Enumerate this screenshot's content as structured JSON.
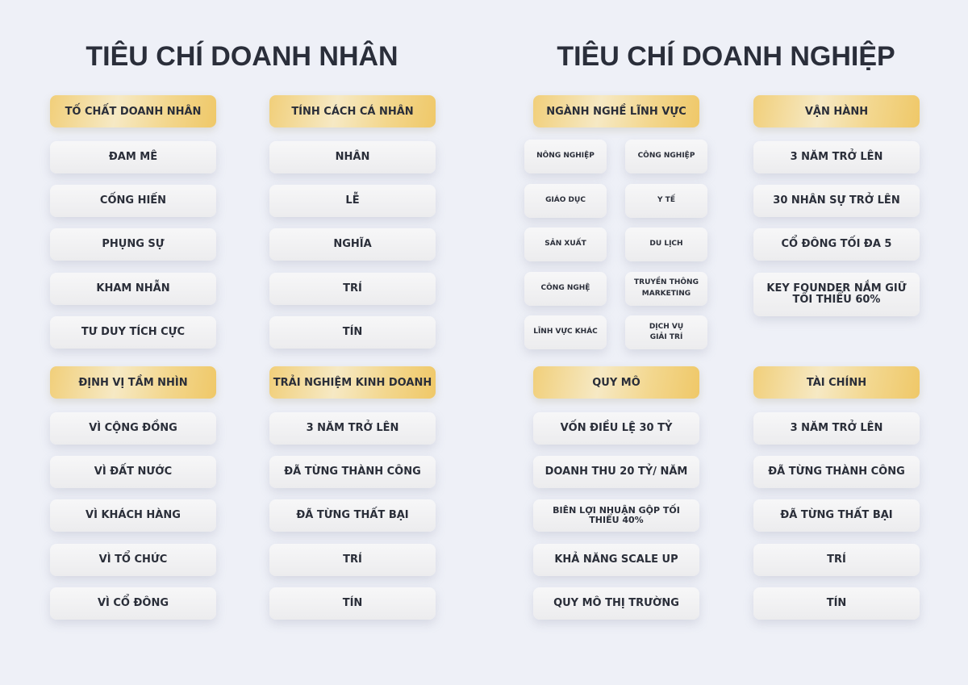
{
  "left_title": "TIÊU CHÍ DOANH NHÂN",
  "right_title": "TIÊU CHÍ DOANH NGHIỆP",
  "columns": [
    {
      "sections": [
        {
          "header": "TỐ CHẤT DOANH NHÂN",
          "items": [
            "ĐAM MÊ",
            "CỐNG HIẾN",
            "PHỤNG SỰ",
            "KHAM NHẪN",
            "TƯ DUY TÍCH CỰC"
          ]
        },
        {
          "header": "ĐỊNH VỊ TẦM NHÌN",
          "items": [
            "VÌ CỘNG ĐỒNG",
            "VÌ ĐẤT NƯỚC",
            "VÌ KHÁCH HÀNG",
            "VÌ TỔ CHỨC",
            "VÌ CỔ ĐÔNG"
          ]
        }
      ]
    },
    {
      "sections": [
        {
          "header": "TÍNH CÁCH CÁ NHÂN",
          "items": [
            "NHÂN",
            "LỄ",
            "NGHĨA",
            "TRÍ",
            "TÍN"
          ]
        },
        {
          "header": "TRẢI NGHIỆM KINH DOANH",
          "items": [
            "3 NĂM TRỞ LÊN",
            "ĐÃ TỪNG THÀNH CÔNG",
            "ĐÃ TỪNG THẤT BẠI",
            "TRÍ",
            "TÍN"
          ]
        }
      ]
    },
    {
      "sections": [
        {
          "header": "NGÀNH NGHỀ LĨNH VỰC",
          "grid": [
            "NÔNG NGHIỆP",
            "CÔNG NGHIỆP",
            "GIÁO DỤC",
            "Y TẾ",
            "SẢN XUẤT",
            "DU LỊCH",
            "CÔNG NGHỆ",
            "TRUYỀN THÔNG\nMARKETING",
            "LĨNH VỰC KHÁC",
            "DỊCH VỤ\nGIẢI TRÍ"
          ]
        },
        {
          "header": "QUY MÔ",
          "items": [
            "VỐN ĐIỀU LỆ 30 TỶ",
            "DOANH THU 20 TỶ/ NĂM",
            "BIÊN LỢI NHUẬN GỘP TỐI THIỂU 40%",
            "KHẢ NĂNG SCALE UP",
            "QUY MÔ THỊ TRƯỜNG"
          ]
        }
      ]
    },
    {
      "sections": [
        {
          "header": "VẬN HÀNH",
          "items": [
            "3 NĂM TRỞ LÊN",
            "30 NHÂN SỰ TRỞ LÊN",
            "CỔ ĐÔNG TỐI ĐA 5",
            "KEY FOUNDER NẮM GIỮ TỐI THIỂU 60%"
          ]
        },
        {
          "header": "TÀI CHÍNH",
          "items": [
            "3 NĂM TRỞ LÊN",
            "ĐÃ TỪNG THÀNH CÔNG",
            "ĐÃ TỪNG THẤT BẠI",
            "TRÍ",
            "TÍN"
          ]
        }
      ]
    }
  ]
}
